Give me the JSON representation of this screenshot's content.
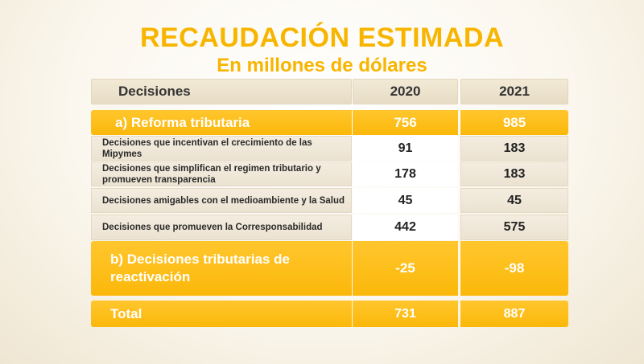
{
  "slide": {
    "title": "RECAUDACIÓN ESTIMADA",
    "subtitle": "En millones de dólares"
  },
  "table": {
    "header": {
      "label": "Decisiones",
      "y2020": "2020",
      "y2021": "2021"
    },
    "reforma": {
      "label": "a) Reforma tributaria",
      "y2020": "756",
      "y2021": "985"
    },
    "rows": [
      {
        "label": "Decisiones que incentivan el crecimiento de las Mipymes",
        "y2020": "91",
        "y2021": "183"
      },
      {
        "label": "Decisiones que simplifican el regimen tributario y promueven transparencia",
        "y2020": "178",
        "y2021": "183"
      },
      {
        "label": "Decisiones amigables con el medioambiente y la Salud",
        "y2020": "45",
        "y2021": "45"
      },
      {
        "label": "Decisiones que promueven la Corresponsabilidad",
        "y2020": "442",
        "y2021": "575"
      }
    ],
    "reactivacion": {
      "label": "b) Decisiones tributarias de reactivación",
      "y2020": "-25",
      "y2021": "-98"
    },
    "total": {
      "label": "Total",
      "y2020": "731",
      "y2021": "887"
    }
  },
  "colors": {
    "accent": "#f7b500",
    "row_yellow": "#fbb80a",
    "row_beige": "#efe6d4"
  }
}
